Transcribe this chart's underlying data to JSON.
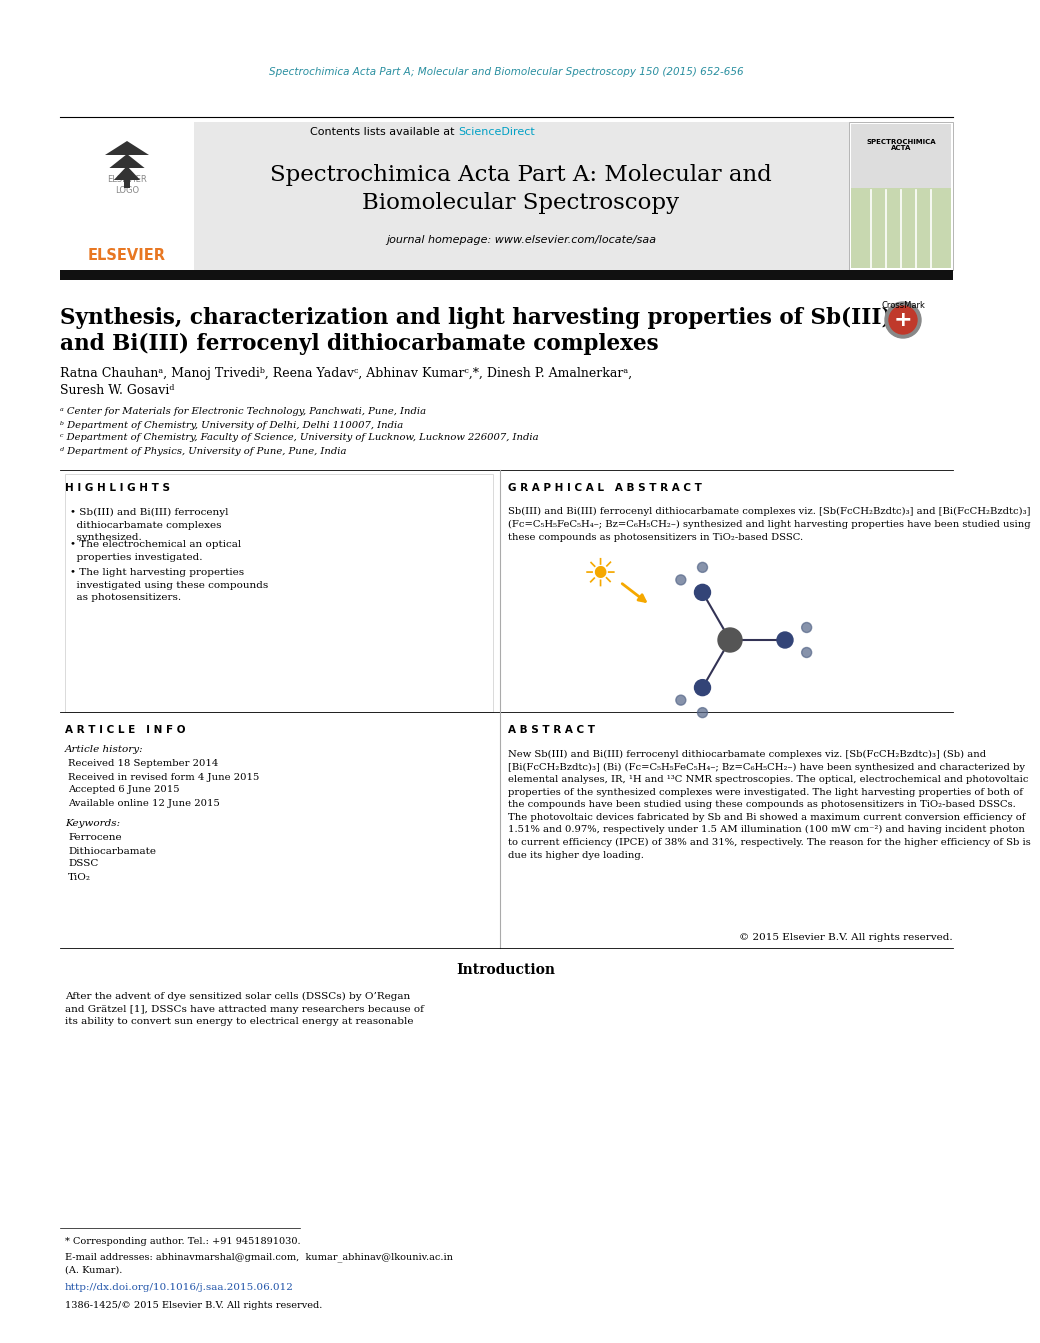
{
  "bg_color": "#ffffff",
  "top_url_text": "Spectrochimica Acta Part A; Molecular and Biomolecular Spectroscopy 150 (2015) 652-656",
  "top_url_color": "#2a8fa0",
  "header_bg": "#e8e8e8",
  "journal_title_line1": "Spectrochimica Acta Part A: Molecular and",
  "journal_title_line2": "Biomolecular Spectroscopy",
  "contents_text": "Contents lists available at ",
  "science_direct": "ScienceDirect",
  "homepage_text": "journal homepage: www.elsevier.com/locate/saa",
  "black_bar_color": "#111111",
  "paper_title_line1": "Synthesis, characterization and light harvesting properties of Sb(III)",
  "paper_title_line2": "and Bi(III) ferrocenyl dithiocarbamate complexes",
  "authors": "Ratna Chauhanᵃ, Manoj Trivediᵇ, Reena Yadavᶜ, Abhinav Kumarᶜ,*, Dinesh P. Amalnerkarᵃ,",
  "authors2": "Suresh W. Gosaviᵈ",
  "affil1": "ᵃ Center for Materials for Electronic Technology, Panchwati, Pune, India",
  "affil2": "ᵇ Department of Chemistry, University of Delhi, Delhi 110007, India",
  "affil3": "ᶜ Department of Chemistry, Faculty of Science, University of Lucknow, Lucknow 226007, India",
  "affil4": "ᵈ Department of Physics, University of Pune, Pune, India",
  "highlights_title": "H I G H L I G H T S",
  "highlight1": "• Sb(III) and Bi(III) ferrocenyl\n  dithiocarbamate complexes\n  synthesized.",
  "highlight2": "• The electrochemical an optical\n  properties investigated.",
  "highlight3": "• The light harvesting properties\n  investigated using these compounds\n  as photosensitizers.",
  "graphical_title": "G R A P H I C A L   A B S T R A C T",
  "graphical_text1": "Sb(III) and Bi(III) ferrocenyl dithiocarbamate complexes viz. [Sb(FcCH₂Bzdtc)₃] and [Bi(FcCH₂Bzdtc)₃]",
  "graphical_text2": "(Fc=C₅H₅FeC₅H₄–; Bz=C₆H₅CH₂–) synthesized and light harvesting properties have been studied using",
  "graphical_text3": "these compounds as photosensitizers in TiO₂-based DSSC.",
  "article_info_title": "A R T I C L E   I N F O",
  "article_history_title": "Article history:",
  "received": "Received 18 September 2014",
  "revised": "Received in revised form 4 June 2015",
  "accepted": "Accepted 6 June 2015",
  "available": "Available online 12 June 2015",
  "keywords_title": "Keywords:",
  "kw1": "Ferrocene",
  "kw2": "Dithiocarbamate",
  "kw3": "DSSC",
  "kw4": "TiO₂",
  "abstract_title": "A B S T R A C T",
  "abstract_text": "New Sb(III) and Bi(III) ferrocenyl dithiocarbamate complexes viz. [Sb(FcCH₂Bzdtc)₃] (Sb) and\n[Bi(FcCH₂Bzdtc)₃] (Bi) (Fc=C₅H₅FeC₅H₄–; Bz=C₆H₅CH₂–) have been synthesized and characterized by\nelemental analyses, IR, ¹H and ¹³C NMR spectroscopies. The optical, electrochemical and photovoltaic\nproperties of the synthesized complexes were investigated. The light harvesting properties of both of\nthe compounds have been studied using these compounds as photosensitizers in TiO₂-based DSSCs.\nThe photovoltaic devices fabricated by Sb and Bi showed a maximum current conversion efficiency of\n1.51% and 0.97%, respectively under 1.5 AM illumination (100 mW cm⁻²) and having incident photon\nto current efficiency (IPCE) of 38% and 31%, respectively. The reason for the higher efficiency of Sb is\ndue its higher dye loading.",
  "copyright": "© 2015 Elsevier B.V. All rights reserved.",
  "intro_title": "Introduction",
  "intro_text_col1": "After the advent of dye sensitized solar cells (DSSCs) by O’Regan\nand Grätzel [1], DSSCs have attracted many researchers because of\nits ability to convert sun energy to electrical energy at reasonable",
  "doi_text": "http://dx.doi.org/10.1016/j.saa.2015.06.012",
  "doi_color": "#2255aa",
  "issn_text": "1386-1425/© 2015 Elsevier B.V. All rights reserved.",
  "corr_text": "* Corresponding author. Tel.: +91 9451891030.",
  "email_line1": "E-mail addresses: abhinavmarshal@gmail.com,  kumar_abhinav@lkouniv.ac.in",
  "email_line2": "(A. Kumar).",
  "elsevier_color": "#e87722",
  "section_title_color": "#555555",
  "divider_color": "#aaaaaa",
  "cover_green": "#c8d8b0",
  "cover_header_bg": "#dddddd"
}
